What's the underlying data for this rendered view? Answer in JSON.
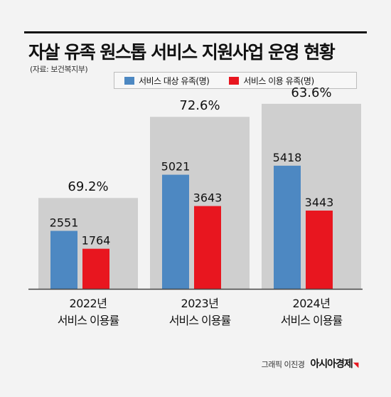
{
  "header": {
    "title": "자살 유족 원스톱 서비스 지원사업 운영 현황",
    "source": "(자료: 보건복지부)"
  },
  "colors": {
    "target": "#4d88c2",
    "used": "#e8161f",
    "rate_box": "#cfcfcf",
    "background": "#f3f3f3",
    "baseline": "#444444"
  },
  "chart_data": {
    "type": "bar",
    "categories": [
      "2022년",
      "2023년",
      "2024년"
    ],
    "category_sublabel": "서비스 이용률",
    "series": [
      {
        "name": "서비스 대상 유족(명)",
        "values": [
          2551,
          5021,
          5418
        ]
      },
      {
        "name": "서비스 이용 유족(명)",
        "values": [
          1764,
          3643,
          3443
        ]
      }
    ],
    "rate_labels": [
      "69.2%",
      "72.6%",
      "63.6%"
    ],
    "rates": [
      69.2,
      72.6,
      63.6
    ],
    "legend_position": "top",
    "grid": false
  },
  "footer": {
    "credit": "그래픽 이진경",
    "brand": "아시아경제"
  }
}
